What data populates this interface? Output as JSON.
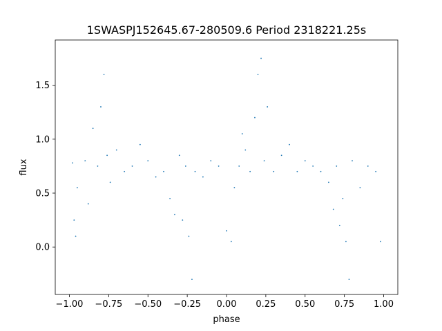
{
  "chart_data": {
    "type": "scatter",
    "title": "1SWASPJ152645.67-280509.6 Period 2318221.25s",
    "xlabel": "phase",
    "ylabel": "flux",
    "xlim": [
      -1.09,
      1.09
    ],
    "ylim": [
      -0.44,
      1.92
    ],
    "xticks": [
      -1.0,
      -0.75,
      -0.5,
      -0.25,
      0.0,
      0.25,
      0.5,
      0.75,
      1.0
    ],
    "xtick_labels": [
      "−1.00",
      "−0.75",
      "−0.50",
      "−0.25",
      "0.00",
      "0.25",
      "0.50",
      "0.75",
      "1.00"
    ],
    "yticks": [
      0.0,
      0.5,
      1.0,
      1.5
    ],
    "ytick_labels": [
      "0.0",
      "0.5",
      "1.0",
      "1.5"
    ],
    "marker_color": "#1f77b4",
    "grid": false,
    "series": [
      {
        "x": [
          -0.98,
          -0.97,
          -0.96,
          -0.95,
          -0.9,
          -0.88,
          -0.85,
          -0.82,
          -0.8,
          -0.78,
          -0.76,
          -0.74,
          -0.7,
          -0.65,
          -0.6,
          -0.55,
          -0.5,
          -0.45,
          -0.4,
          -0.36,
          -0.33,
          -0.3,
          -0.28,
          -0.26,
          -0.24,
          -0.22,
          -0.2,
          -0.15,
          -0.1,
          -0.05,
          0.0,
          0.03,
          0.05,
          0.08,
          0.1,
          0.12,
          0.15,
          0.18,
          0.2,
          0.22,
          0.24,
          0.26,
          0.3,
          0.35,
          0.4,
          0.45,
          0.5,
          0.55,
          0.6,
          0.65,
          0.68,
          0.7,
          0.72,
          0.74,
          0.76,
          0.78,
          0.8,
          0.85,
          0.9,
          0.95,
          0.98
        ],
        "y": [
          0.78,
          0.25,
          0.1,
          0.55,
          0.8,
          0.4,
          1.1,
          0.75,
          1.3,
          1.6,
          0.85,
          0.6,
          0.9,
          0.7,
          0.75,
          0.95,
          0.8,
          0.65,
          0.7,
          0.45,
          0.3,
          0.85,
          0.25,
          0.75,
          0.1,
          -0.3,
          0.7,
          0.65,
          0.8,
          0.75,
          0.15,
          0.05,
          0.55,
          0.75,
          1.05,
          0.9,
          0.7,
          1.2,
          1.6,
          1.75,
          0.8,
          1.3,
          0.7,
          0.85,
          0.95,
          0.7,
          0.8,
          0.75,
          0.7,
          0.6,
          0.35,
          0.75,
          0.2,
          0.45,
          0.05,
          -0.3,
          0.8,
          0.55,
          0.75,
          0.7,
          0.05
        ]
      }
    ]
  }
}
